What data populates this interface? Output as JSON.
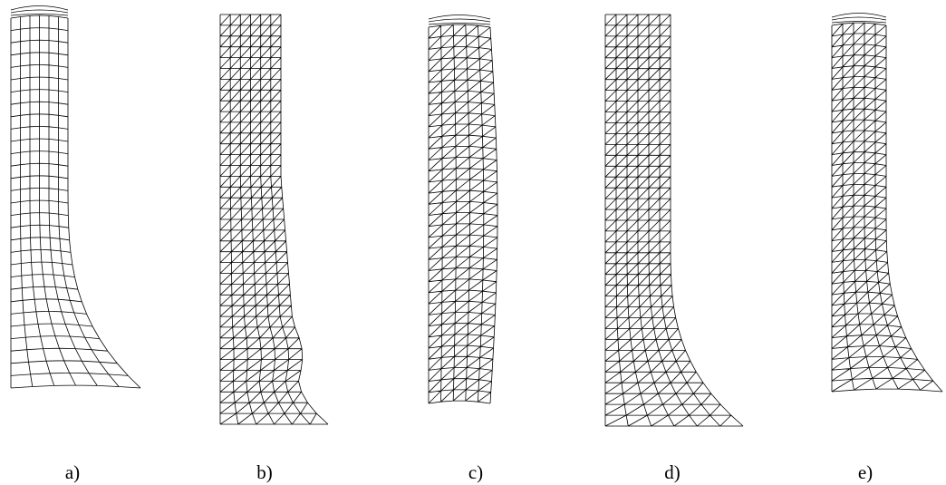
{
  "panels": [
    {
      "label": "a)"
    },
    {
      "label": "b)"
    },
    {
      "label": "c)"
    },
    {
      "label": "d)"
    },
    {
      "label": "e)"
    }
  ]
}
